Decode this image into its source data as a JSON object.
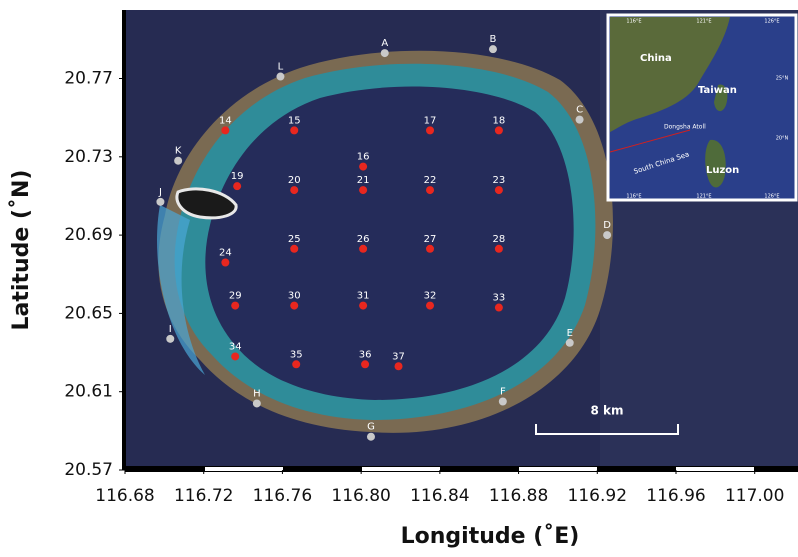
{
  "chart_data": {
    "type": "scatter",
    "xlabel": "Longitude (˚E)",
    "ylabel": "Latitude (˚N)",
    "xlim": [
      116.68,
      117.022
    ],
    "ylim": [
      20.57,
      20.805
    ],
    "xticks": [
      116.68,
      116.72,
      116.76,
      {
        "value": 116.8,
        "label": "116.80"
      },
      116.84,
      116.88,
      116.92,
      116.96,
      {
        "value": 117,
        "label": "117.00"
      }
    ],
    "yticks": [
      20.57,
      20.61,
      20.65,
      20.69,
      20.73,
      20.77
    ],
    "groups": [
      {
        "color": "#e8271f",
        "points": [
          {
            "label": "14",
            "lon": 116.731,
            "lat": 20.7435
          },
          {
            "label": "15",
            "lon": 116.766,
            "lat": 20.7435
          },
          {
            "label": "16",
            "lon": 116.801,
            "lat": 20.725
          },
          {
            "label": "17",
            "lon": 116.835,
            "lat": 20.7435
          },
          {
            "label": "18",
            "lon": 116.87,
            "lat": 20.7435
          },
          {
            "label": "19",
            "lon": 116.737,
            "lat": 20.715
          },
          {
            "label": "20",
            "lon": 116.766,
            "lat": 20.713
          },
          {
            "label": "21",
            "lon": 116.801,
            "lat": 20.713
          },
          {
            "label": "22",
            "lon": 116.835,
            "lat": 20.713
          },
          {
            "label": "23",
            "lon": 116.87,
            "lat": 20.713
          },
          {
            "label": "24",
            "lon": 116.731,
            "lat": 20.676
          },
          {
            "label": "25",
            "lon": 116.766,
            "lat": 20.683
          },
          {
            "label": "26",
            "lon": 116.801,
            "lat": 20.683
          },
          {
            "label": "27",
            "lon": 116.835,
            "lat": 20.683
          },
          {
            "label": "28",
            "lon": 116.87,
            "lat": 20.683
          },
          {
            "label": "29",
            "lon": 116.736,
            "lat": 20.654
          },
          {
            "label": "30",
            "lon": 116.766,
            "lat": 20.654
          },
          {
            "label": "31",
            "lon": 116.801,
            "lat": 20.654
          },
          {
            "label": "32",
            "lon": 116.835,
            "lat": 20.654
          },
          {
            "label": "33",
            "lon": 116.87,
            "lat": 20.653
          },
          {
            "label": "34",
            "lon": 116.736,
            "lat": 20.628
          },
          {
            "label": "35",
            "lon": 116.767,
            "lat": 20.624
          },
          {
            "label": "36",
            "lon": 116.802,
            "lat": 20.624
          },
          {
            "label": "37",
            "lon": 116.819,
            "lat": 20.623
          }
        ]
      },
      {
        "color": "#c9c9c9",
        "points": [
          {
            "label": "A",
            "lon": 116.812,
            "lat": 20.783
          },
          {
            "label": "B",
            "lon": 116.867,
            "lat": 20.785
          },
          {
            "label": "C",
            "lon": 116.911,
            "lat": 20.749
          },
          {
            "label": "D",
            "lon": 116.925,
            "lat": 20.69
          },
          {
            "label": "E",
            "lon": 116.906,
            "lat": 20.635
          },
          {
            "label": "F",
            "lon": 116.872,
            "lat": 20.605
          },
          {
            "label": "G",
            "lon": 116.805,
            "lat": 20.587
          },
          {
            "label": "H",
            "lon": 116.747,
            "lat": 20.604
          },
          {
            "label": "I",
            "lon": 116.703,
            "lat": 20.637
          },
          {
            "label": "J",
            "lon": 116.698,
            "lat": 20.707
          },
          {
            "label": "K",
            "lon": 116.707,
            "lat": 20.728
          },
          {
            "label": "L",
            "lon": 116.759,
            "lat": 20.771
          }
        ]
      }
    ],
    "scale_bar": "8 km"
  },
  "inset": {
    "lon_labels": [
      "116°E",
      "121°E",
      "126°E"
    ],
    "lat_labels": [
      "25°N",
      "20°N"
    ],
    "places": [
      "China",
      "Taiwan",
      "Dongsha Atoll",
      "South China Sea",
      "Luzon"
    ]
  }
}
